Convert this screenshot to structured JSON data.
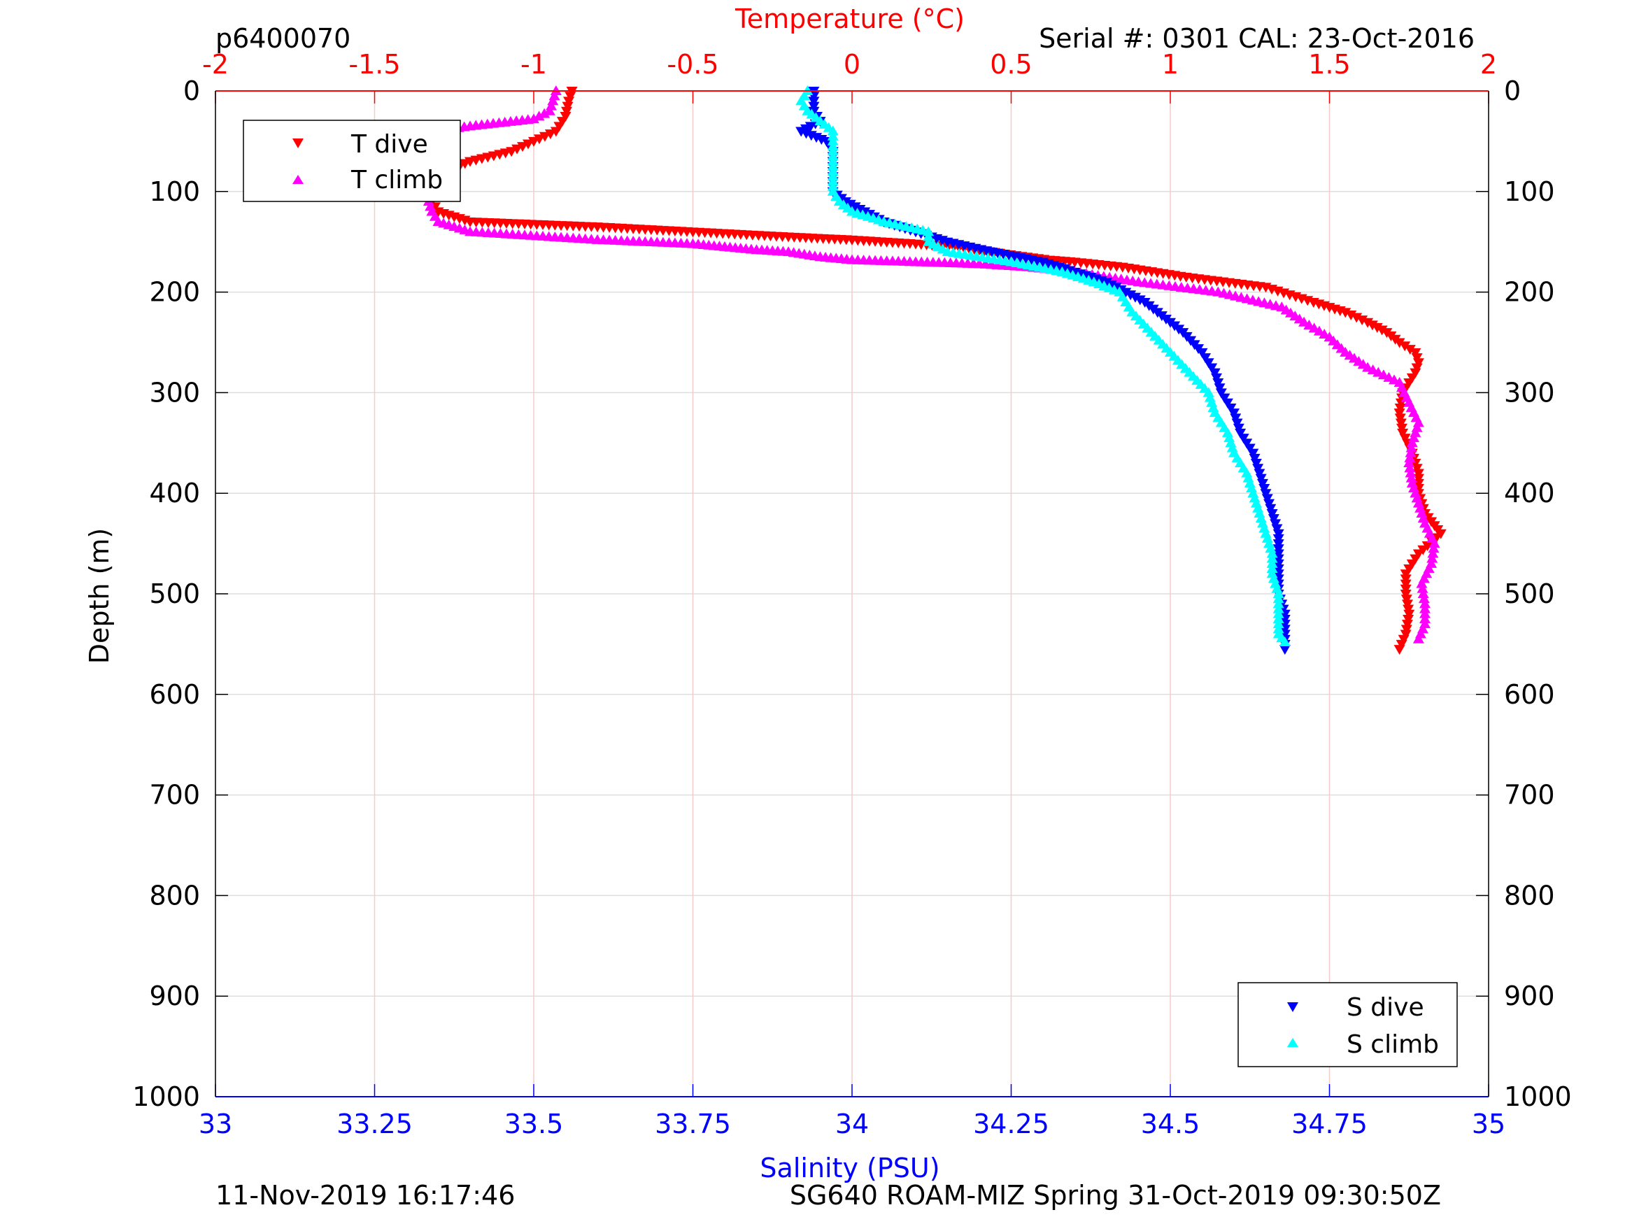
{
  "header": {
    "plot_id": "p6400070",
    "serial": "Serial #: 0301  CAL: 23-Oct-2016"
  },
  "footer": {
    "timestamp": "11-Nov-2019 16:17:46",
    "mission": "SG640 ROAM-MIZ Spring 31-Oct-2019 09:30:50Z"
  },
  "colors": {
    "temperature_axis": "#ff0000",
    "salinity_axis": "#0000ff",
    "t_dive": "#ff0000",
    "t_climb": "#ff00ff",
    "s_dive": "#0000ff",
    "s_climb": "#00ffff"
  },
  "chart_data": {
    "type": "scatter",
    "ylabel": "Depth (m)",
    "ylim": [
      0,
      1000
    ],
    "yreverse": true,
    "yticks": [
      "0",
      "100",
      "200",
      "300",
      "400",
      "500",
      "600",
      "700",
      "800",
      "900",
      "1000"
    ],
    "top_axis": {
      "label": "Temperature (°C)",
      "lim": [
        -2,
        2
      ],
      "ticks": [
        "-2",
        "-1.5",
        "-1",
        "-0.5",
        "0",
        "0.5",
        "1",
        "1.5",
        "2"
      ]
    },
    "bottom_axis": {
      "label": "Salinity (PSU)",
      "lim": [
        33,
        35
      ],
      "ticks": [
        "33",
        "33.25",
        "33.5",
        "33.75",
        "34",
        "34.25",
        "34.5",
        "34.75",
        "35"
      ]
    },
    "grid": true,
    "legends": [
      {
        "placement": "top-left",
        "entries": [
          "T dive",
          "T climb"
        ]
      },
      {
        "placement": "bottom-right",
        "entries": [
          "S dive",
          "S climb"
        ]
      }
    ],
    "series": [
      {
        "name": "T dive",
        "axis": "temperature",
        "marker": "triangle-down",
        "depth": [
          0,
          10,
          25,
          40,
          50,
          60,
          70,
          80,
          90,
          100,
          110,
          120,
          130,
          135,
          140,
          145,
          148,
          152,
          155,
          158,
          162,
          165,
          168,
          170,
          175,
          185,
          195,
          210,
          220,
          230,
          240,
          250,
          260,
          270,
          280,
          300,
          320,
          340,
          360,
          380,
          400,
          420,
          440,
          460,
          480,
          500,
          520,
          540,
          555
        ],
        "values": [
          -0.88,
          -0.89,
          -0.9,
          -0.93,
          -1.0,
          -1.07,
          -1.2,
          -1.28,
          -1.3,
          -1.32,
          -1.32,
          -1.3,
          -1.2,
          -0.8,
          -0.5,
          -0.2,
          0.0,
          0.2,
          0.32,
          0.4,
          0.48,
          0.55,
          0.62,
          0.7,
          0.85,
          1.05,
          1.3,
          1.45,
          1.55,
          1.62,
          1.68,
          1.72,
          1.77,
          1.78,
          1.77,
          1.73,
          1.72,
          1.73,
          1.76,
          1.78,
          1.78,
          1.8,
          1.85,
          1.78,
          1.74,
          1.74,
          1.75,
          1.74,
          1.72
        ]
      },
      {
        "name": "T climb",
        "axis": "temperature",
        "marker": "triangle-up",
        "depth": [
          0,
          10,
          20,
          28,
          35,
          40,
          60,
          80,
          100,
          110,
          120,
          130,
          140,
          148,
          152,
          155,
          158,
          160,
          165,
          168,
          170,
          172,
          175,
          180,
          190,
          200,
          215,
          230,
          245,
          260,
          275,
          290,
          310,
          330,
          350,
          370,
          390,
          410,
          430,
          450,
          470,
          490,
          510,
          530,
          545
        ],
        "values": [
          -0.93,
          -0.94,
          -0.95,
          -1.0,
          -1.2,
          -1.31,
          -1.32,
          -1.33,
          -1.33,
          -1.33,
          -1.32,
          -1.3,
          -1.2,
          -0.8,
          -0.5,
          -0.4,
          -0.3,
          -0.2,
          -0.1,
          0.0,
          0.2,
          0.4,
          0.55,
          0.7,
          0.9,
          1.15,
          1.35,
          1.42,
          1.5,
          1.55,
          1.62,
          1.72,
          1.75,
          1.78,
          1.76,
          1.75,
          1.76,
          1.78,
          1.8,
          1.83,
          1.82,
          1.79,
          1.8,
          1.8,
          1.78
        ]
      },
      {
        "name": "S dive",
        "axis": "salinity",
        "marker": "triangle-down",
        "depth": [
          0,
          20,
          30,
          40,
          50,
          60,
          80,
          100,
          110,
          120,
          130,
          140,
          150,
          160,
          170,
          180,
          190,
          200,
          210,
          220,
          240,
          260,
          280,
          300,
          320,
          340,
          360,
          380,
          400,
          420,
          440,
          460,
          480,
          500,
          520,
          540,
          555
        ],
        "values": [
          33.94,
          33.94,
          33.95,
          33.92,
          33.96,
          33.97,
          33.97,
          33.97,
          33.99,
          34.02,
          34.05,
          34.1,
          34.15,
          34.22,
          34.3,
          34.35,
          34.4,
          34.43,
          34.46,
          34.48,
          34.52,
          34.55,
          34.57,
          34.58,
          34.6,
          34.61,
          34.63,
          34.64,
          34.65,
          34.66,
          34.67,
          34.67,
          34.67,
          34.67,
          34.68,
          34.68,
          34.68
        ]
      },
      {
        "name": "S climb",
        "axis": "salinity",
        "marker": "triangle-up",
        "depth": [
          0,
          10,
          20,
          30,
          40,
          60,
          80,
          100,
          110,
          120,
          130,
          140,
          150,
          160,
          170,
          180,
          190,
          200,
          220,
          240,
          260,
          280,
          300,
          320,
          340,
          360,
          380,
          400,
          420,
          440,
          460,
          480,
          500,
          520,
          540,
          548
        ],
        "values": [
          33.93,
          33.92,
          33.93,
          33.95,
          33.97,
          33.97,
          33.97,
          33.97,
          33.98,
          34.0,
          34.05,
          34.12,
          34.12,
          34.15,
          34.25,
          34.33,
          34.38,
          34.42,
          34.44,
          34.47,
          34.5,
          34.53,
          34.56,
          34.57,
          34.59,
          34.6,
          34.62,
          34.63,
          34.64,
          34.65,
          34.66,
          34.66,
          34.67,
          34.67,
          34.67,
          34.68
        ]
      }
    ]
  }
}
